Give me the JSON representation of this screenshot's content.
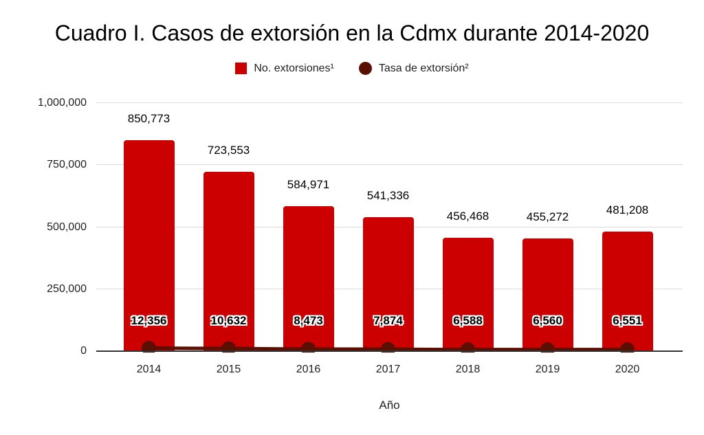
{
  "title": "Cuadro I. Casos de extorsión en la Cdmx durante 2014-2020",
  "legend": {
    "items": [
      {
        "label": "No. extorsiones¹",
        "shape": "square",
        "color": "#cc0000"
      },
      {
        "label": "Tasa de extorsión²",
        "shape": "circle",
        "color": "#5b0f00"
      }
    ]
  },
  "x_axis_title": "Año",
  "chart_data": {
    "type": "bar",
    "categories": [
      "2014",
      "2015",
      "2016",
      "2017",
      "2018",
      "2019",
      "2020"
    ],
    "series": [
      {
        "name": "No. extorsiones¹",
        "render_as": "bar",
        "color": "#cc0000",
        "values": [
          850773,
          723553,
          584971,
          541336,
          456468,
          455272,
          481208
        ],
        "labels": [
          "850,773",
          "723,553",
          "584,971",
          "541,336",
          "456,468",
          "455,272",
          "481,208"
        ]
      },
      {
        "name": "Tasa de extorsión²",
        "render_as": "line-with-points",
        "color": "#5b0f00",
        "values": [
          12356,
          10632,
          8473,
          7874,
          6588,
          6560,
          6551
        ],
        "labels": [
          "12,356",
          "10,632",
          "8,473",
          "7,874",
          "6,588",
          "6,560",
          "6,551"
        ]
      }
    ],
    "title": "Cuadro I. Casos de extorsión en la Cdmx durante 2014-2020",
    "xlabel": "Año",
    "ylabel": "",
    "ylim": [
      0,
      1000000
    ],
    "yticks": [
      {
        "value": 0,
        "label": "0"
      },
      {
        "value": 250000,
        "label": "250,000"
      },
      {
        "value": 500000,
        "label": "500,000"
      },
      {
        "value": 750000,
        "label": "750,000"
      },
      {
        "value": 1000000,
        "label": "1,000,000"
      }
    ],
    "grid": true,
    "legend_position": "top",
    "colors": {
      "bar": "#cc0000",
      "line": "#5b0f00",
      "gridline": "#d9d9d9",
      "axis_line": "#333333",
      "text": "#1f1f1f"
    }
  }
}
